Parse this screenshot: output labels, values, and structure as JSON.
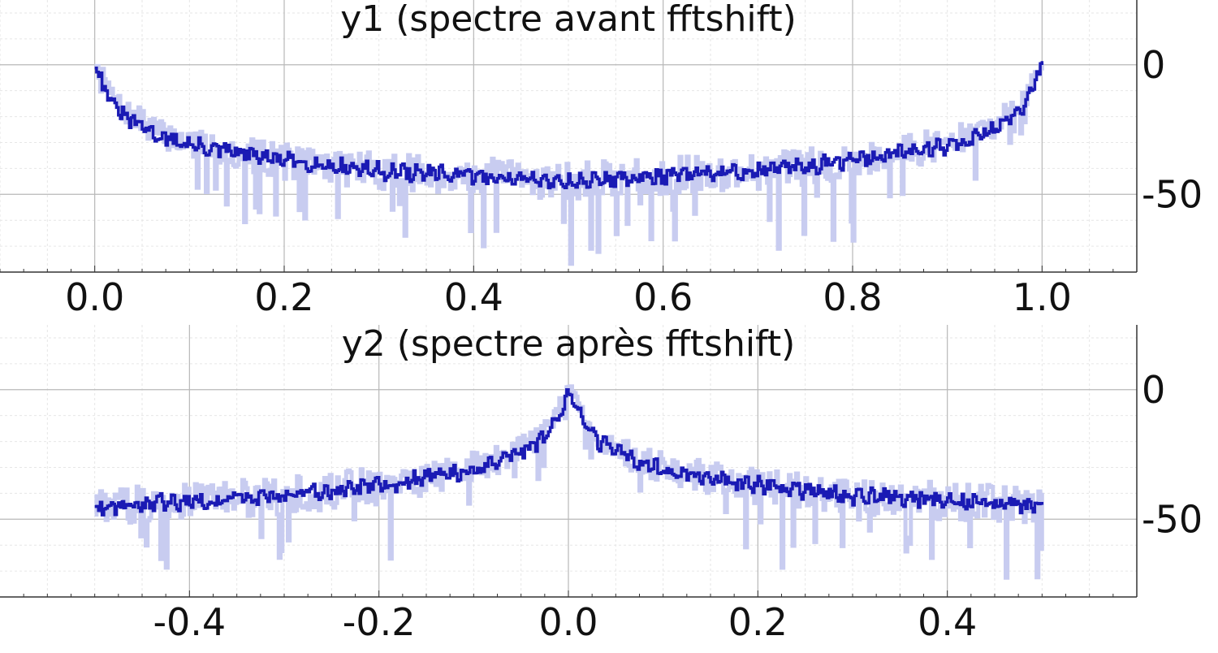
{
  "chart_data": [
    {
      "type": "line",
      "title": "y1 (spectre avant fftshift)",
      "xlabel": "",
      "ylabel": "",
      "xlim": [
        -0.1,
        1.1
      ],
      "ylim": [
        -80,
        25
      ],
      "xticks": [
        0.0,
        0.2,
        0.4,
        0.6,
        0.8,
        1.0
      ],
      "xtick_labels": [
        "0.0",
        "0.2",
        "0.4",
        "0.6",
        "0.8",
        "1.0"
      ],
      "yticks": [
        0,
        -50
      ],
      "ytick_labels": [
        "0",
        "-50"
      ],
      "y_axis_side": "right",
      "grid": true,
      "series": [
        {
          "role": "raw",
          "color": "#c8ccf0",
          "x": [
            0.0,
            0.01,
            0.02,
            0.03,
            0.05,
            0.07,
            0.1,
            0.15,
            0.2,
            0.25,
            0.3,
            0.35,
            0.4,
            0.45,
            0.5,
            0.55,
            0.6,
            0.65,
            0.7,
            0.75,
            0.8,
            0.85,
            0.9,
            0.93,
            0.95,
            0.97,
            0.98,
            0.99,
            1.0
          ],
          "y": [
            0,
            -6,
            -14,
            -18,
            -22,
            -27,
            -30,
            -34,
            -37,
            -39,
            -41,
            -42,
            -43,
            -44,
            -45,
            -44,
            -43,
            -42,
            -41,
            -39,
            -37,
            -34,
            -30,
            -27,
            -22,
            -18,
            -14,
            -6,
            0
          ],
          "spread": [
            10,
            12,
            14,
            16,
            18,
            20,
            22,
            24,
            26,
            26,
            26,
            26,
            26,
            26,
            26,
            26,
            26,
            26,
            26,
            26,
            26,
            24,
            22,
            20,
            18,
            16,
            14,
            12,
            10
          ]
        },
        {
          "role": "smoothed",
          "color": "#1a1ab4",
          "x": [
            0.0,
            0.01,
            0.02,
            0.03,
            0.05,
            0.07,
            0.1,
            0.15,
            0.2,
            0.25,
            0.3,
            0.35,
            0.4,
            0.45,
            0.5,
            0.55,
            0.6,
            0.65,
            0.7,
            0.75,
            0.8,
            0.85,
            0.9,
            0.93,
            0.95,
            0.97,
            0.98,
            0.99,
            1.0
          ],
          "y": [
            0,
            -9,
            -16,
            -20,
            -24,
            -28,
            -31,
            -34,
            -37,
            -39,
            -41,
            -42,
            -43,
            -44,
            -45,
            -44,
            -43,
            -42,
            -41,
            -39,
            -37,
            -34,
            -31,
            -28,
            -24,
            -20,
            -16,
            -9,
            0
          ]
        }
      ]
    },
    {
      "type": "line",
      "title": "y2 (spectre après fftshift)",
      "xlabel": "",
      "ylabel": "",
      "xlim": [
        -0.6,
        0.6
      ],
      "ylim": [
        -80,
        25
      ],
      "xticks": [
        -0.4,
        -0.2,
        0.0,
        0.2,
        0.4
      ],
      "xtick_labels": [
        "-0.4",
        "-0.2",
        "0.0",
        "0.2",
        "0.4"
      ],
      "yticks": [
        0,
        -50
      ],
      "ytick_labels": [
        "0",
        "-50"
      ],
      "y_axis_side": "right",
      "grid": true,
      "series": [
        {
          "role": "raw",
          "color": "#c8ccf0",
          "x": [
            -0.5,
            -0.45,
            -0.4,
            -0.35,
            -0.3,
            -0.25,
            -0.2,
            -0.15,
            -0.1,
            -0.07,
            -0.05,
            -0.03,
            -0.02,
            -0.01,
            0.0,
            0.01,
            0.02,
            0.03,
            0.05,
            0.07,
            0.1,
            0.15,
            0.2,
            0.25,
            0.3,
            0.35,
            0.4,
            0.45,
            0.5
          ],
          "y": [
            -45,
            -44,
            -43,
            -42,
            -41,
            -39,
            -37,
            -34,
            -30,
            -27,
            -22,
            -18,
            -14,
            -6,
            0,
            -6,
            -14,
            -18,
            -22,
            -27,
            -30,
            -34,
            -37,
            -39,
            -41,
            -42,
            -43,
            -44,
            -45
          ],
          "spread": [
            26,
            26,
            26,
            26,
            26,
            26,
            26,
            24,
            22,
            20,
            18,
            16,
            14,
            12,
            10,
            12,
            14,
            16,
            18,
            20,
            22,
            24,
            26,
            26,
            26,
            26,
            26,
            26,
            26
          ]
        },
        {
          "role": "smoothed",
          "color": "#1a1ab4",
          "x": [
            -0.5,
            -0.45,
            -0.4,
            -0.35,
            -0.3,
            -0.25,
            -0.2,
            -0.15,
            -0.1,
            -0.07,
            -0.05,
            -0.03,
            -0.02,
            -0.01,
            0.0,
            0.01,
            0.02,
            0.03,
            0.05,
            0.07,
            0.1,
            0.15,
            0.2,
            0.25,
            0.3,
            0.35,
            0.4,
            0.45,
            0.5
          ],
          "y": [
            -45,
            -44,
            -43,
            -42,
            -41,
            -39,
            -37,
            -34,
            -31,
            -28,
            -24,
            -20,
            -16,
            -9,
            0,
            -9,
            -16,
            -20,
            -24,
            -28,
            -31,
            -34,
            -37,
            -39,
            -41,
            -42,
            -43,
            -44,
            -45
          ]
        }
      ]
    }
  ]
}
